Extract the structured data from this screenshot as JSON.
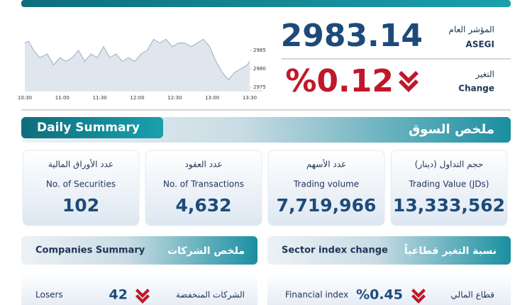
{
  "index": {
    "name_ar": "المؤشر العام",
    "name_en": "ASEGI",
    "value": "2983.14",
    "change_ar": "التغير",
    "change_en": "Change",
    "change": "%0.12"
  },
  "chart_data": {
    "type": "line",
    "x": [
      "10:30",
      "10:33",
      "10:37",
      "10:42",
      "10:48",
      "10:53",
      "10:58",
      "11:03",
      "11:08",
      "11:13",
      "11:18",
      "11:23",
      "11:28",
      "11:33",
      "11:38",
      "11:43",
      "11:48",
      "11:53",
      "11:58",
      "12:03",
      "12:08",
      "12:13",
      "12:18",
      "12:23",
      "12:28",
      "12:33",
      "12:38",
      "12:43",
      "12:48",
      "12:53",
      "12:58",
      "13:03",
      "13:08",
      "13:13",
      "13:18",
      "13:23",
      "13:28",
      "13:30"
    ],
    "series": [
      {
        "color": "#a9b8c9",
        "values": [
          2987,
          2987.5,
          2985,
          2983,
          2984,
          2981,
          2983,
          2982,
          2983,
          2985,
          2982,
          2984,
          2983,
          2986,
          2983,
          2984,
          2982,
          2983,
          2982,
          2984,
          2985,
          2988,
          2987,
          2988,
          2986,
          2987,
          2987,
          2986,
          2987,
          2988,
          2986,
          2982,
          2979,
          2977,
          2979,
          2980,
          2981,
          2982
        ]
      }
    ],
    "xlim": [
      "10:30",
      "13:30"
    ],
    "xticks": [
      "10:30",
      "11:00",
      "11:30",
      "12:00",
      "12:30",
      "13:00",
      "13:30"
    ],
    "ylim": [
      2974,
      2990
    ],
    "yticks": [
      2975,
      2980,
      2985
    ]
  },
  "daily_summary": {
    "title_en": "Daily Summary",
    "title_ar": "ملخص السوق",
    "cards": [
      {
        "label_ar": "عدد الأوراق المالية",
        "label_en": "No. of Securities",
        "value": "102"
      },
      {
        "label_ar": "عدد العقود",
        "label_en": "No. of Transactions",
        "value": "4,632"
      },
      {
        "label_ar": "عدد الأسهم",
        "label_en": "Trading volume",
        "value": "7,719,966"
      },
      {
        "label_ar": "حجم التداول (دينار)",
        "label_en": "Trading Value (JDs)",
        "value": "13,333,562"
      }
    ]
  },
  "companies_summary": {
    "title_en": "Companies Summary",
    "title_ar": "ملخص الشركات",
    "rows": [
      {
        "label_en": "Losers",
        "value": "42",
        "label_ar": "الشركات المنخفضة"
      }
    ]
  },
  "sector_index_change": {
    "title_en": "Sector index change",
    "title_ar": "نسبة التغير قطاعياً",
    "rows": [
      {
        "label_en": "Financial index",
        "value": "%0.45",
        "label_ar": "قطاع المالي"
      }
    ]
  }
}
